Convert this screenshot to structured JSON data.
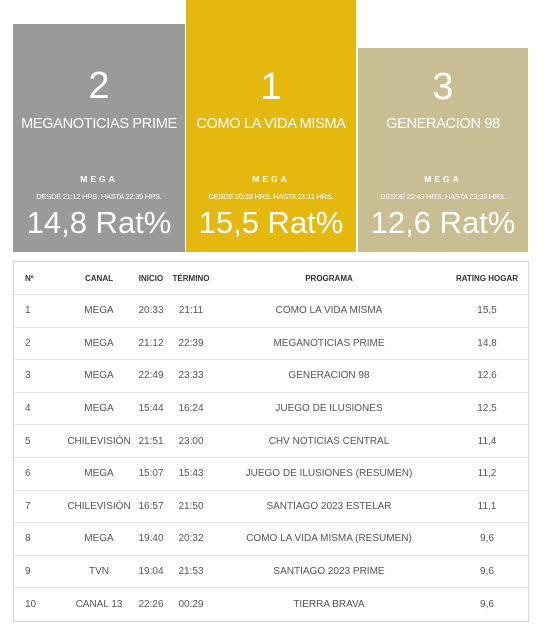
{
  "podium": [
    {
      "position": "second",
      "rank": "2",
      "title": "MEGANOTICIAS PRIME",
      "channel": "MEGA",
      "schedule": "DESDE 21:12 HRS. HASTA 22:39 HRS.",
      "rating": "14,8 Rat%",
      "color": "#9a9a9a"
    },
    {
      "position": "first",
      "rank": "1",
      "title": "COMO LA VIDA MISMA",
      "channel": "MEGA",
      "schedule": "DESDE 20:33 HRS. HASTA 21:11 HRS.",
      "rating": "15,5 Rat%",
      "color": "#e4b80f"
    },
    {
      "position": "third",
      "rank": "3",
      "title": "GENERACION 98",
      "channel": "MEGA",
      "schedule": "DESDE 22:49 HRS. HASTA 23:33 HRS.",
      "rating": "12,6 Rat%",
      "color": "#c9bd93"
    }
  ],
  "table": {
    "headers": {
      "num": "Nº",
      "canal": "CANAL",
      "inicio": "INICIO",
      "termino": "TÉRMINO",
      "programa": "PROGRAMA",
      "rating": "RATING HOGAR"
    },
    "rows": [
      {
        "num": "1",
        "canal": "MEGA",
        "inicio": "20:33",
        "termino": "21:11",
        "programa": "COMO LA VIDA MISMA",
        "rating": "15,5"
      },
      {
        "num": "2",
        "canal": "MEGA",
        "inicio": "21:12",
        "termino": "22:39",
        "programa": "MEGANOTICIAS PRIME",
        "rating": "14,8"
      },
      {
        "num": "3",
        "canal": "MEGA",
        "inicio": "22:49",
        "termino": "23:33",
        "programa": "GENERACION 98",
        "rating": "12,6"
      },
      {
        "num": "4",
        "canal": "MEGA",
        "inicio": "15:44",
        "termino": "16:24",
        "programa": "JUEGO DE ILUSIONES",
        "rating": "12,5"
      },
      {
        "num": "5",
        "canal": "CHILEVISIÓN",
        "inicio": "21:51",
        "termino": "23:00",
        "programa": "CHV NOTICIAS CENTRAL",
        "rating": "11,4"
      },
      {
        "num": "6",
        "canal": "MEGA",
        "inicio": "15:07",
        "termino": "15:43",
        "programa": "JUEGO DE ILUSIONES (RESUMEN)",
        "rating": "11,2"
      },
      {
        "num": "7",
        "canal": "CHILEVISIÓN",
        "inicio": "16:57",
        "termino": "21:50",
        "programa": "SANTIAGO 2023 ESTELAR",
        "rating": "11,1"
      },
      {
        "num": "8",
        "canal": "MEGA",
        "inicio": "19:40",
        "termino": "20:32",
        "programa": "COMO LA VIDA MISMA (RESUMEN)",
        "rating": "9,6"
      },
      {
        "num": "9",
        "canal": "TVN",
        "inicio": "19:04",
        "termino": "21:53",
        "programa": "SANTIAGO 2023 PRIME",
        "rating": "9,6"
      },
      {
        "num": "10",
        "canal": "CANAL 13",
        "inicio": "22:26",
        "termino": "00:29",
        "programa": "TIERRA BRAVA",
        "rating": "9,6"
      }
    ]
  }
}
